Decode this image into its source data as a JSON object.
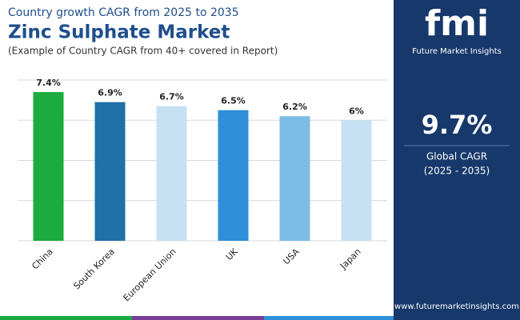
{
  "chart_data": {
    "type": "bar",
    "supertitle": "Country growth CAGR from 2025 to 2035",
    "title": "Zinc Sulphate Market",
    "subtitle": "(Example of Country CAGR from 40+ covered in Report)",
    "categories": [
      "China",
      "South Korea",
      "European Union",
      "UK",
      "USA",
      "Japan"
    ],
    "values": [
      7.4,
      6.9,
      6.7,
      6.5,
      6.2,
      6
    ],
    "value_labels": [
      "7.4%",
      "6.9%",
      "6.7%",
      "6.5%",
      "6.2%",
      "6%"
    ],
    "colors": [
      "#1bab3e",
      "#1f70a8",
      "#c5e1f3",
      "#2e90d8",
      "#7dbce4",
      "#c5e1f3"
    ],
    "ylim": [
      0,
      8
    ],
    "yticks": [
      0,
      2,
      4,
      6,
      8
    ],
    "grid": true
  },
  "sidebar": {
    "logo": "fmi",
    "brand": "Future Market Insights",
    "cagr": "9.7%",
    "cagr_label": "Global CAGR",
    "period": "(2025 - 2035)",
    "website": "www.futuremarketinsights.com"
  }
}
